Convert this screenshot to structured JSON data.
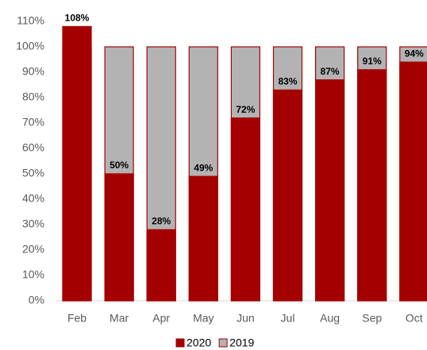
{
  "chart_data": {
    "type": "bar",
    "categories": [
      "Feb",
      "Mar",
      "Apr",
      "May",
      "Jun",
      "Jul",
      "Aug",
      "Sep",
      "Oct"
    ],
    "series": [
      {
        "name": "2020",
        "color": "#a50000",
        "values": [
          108,
          50,
          28,
          49,
          72,
          83,
          87,
          91,
          94
        ],
        "value_labels": [
          "108%",
          "50%",
          "28%",
          "49%",
          "72%",
          "83%",
          "87%",
          "91%",
          "94%"
        ]
      },
      {
        "name": "2019",
        "color": "#b3b3b3",
        "values": [
          100,
          100,
          100,
          100,
          100,
          100,
          100,
          100,
          100
        ]
      }
    ],
    "ylim": [
      0,
      110
    ],
    "yticks": [
      {
        "value": 0,
        "label": "0%"
      },
      {
        "value": 10,
        "label": "10%"
      },
      {
        "value": 20,
        "label": "20%"
      },
      {
        "value": 30,
        "label": "30%"
      },
      {
        "value": 40,
        "label": "40%"
      },
      {
        "value": 50,
        "label": "50%"
      },
      {
        "value": 60,
        "label": "60%"
      },
      {
        "value": 70,
        "label": "70%"
      },
      {
        "value": 80,
        "label": "80%"
      },
      {
        "value": 90,
        "label": "90%"
      },
      {
        "value": 100,
        "label": "100%"
      },
      {
        "value": 110,
        "label": "110%"
      }
    ],
    "grid": false
  }
}
